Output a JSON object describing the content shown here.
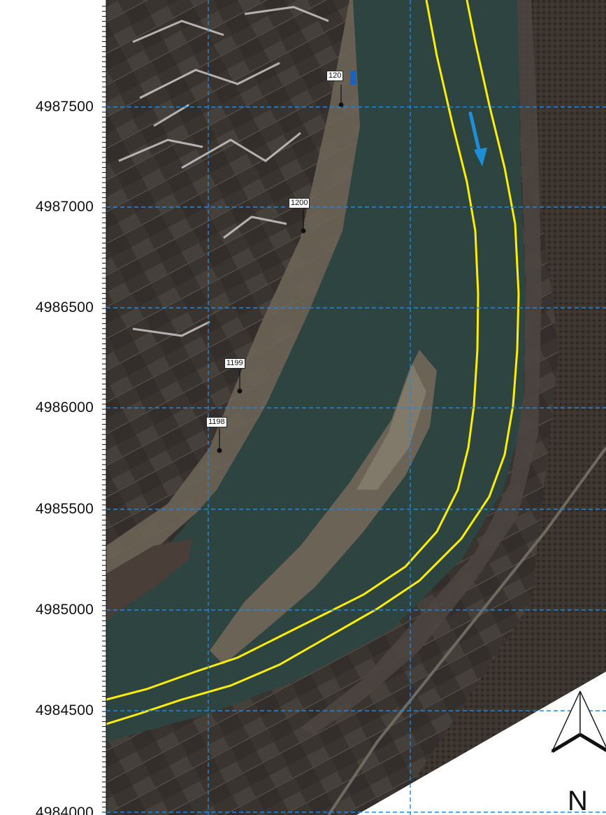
{
  "map": {
    "y_axis_labels": [
      "4987500",
      "4987000",
      "4986500",
      "4986000",
      "4985500",
      "4985000",
      "4984500",
      "4984000"
    ],
    "markers": [
      {
        "label": "120"
      },
      {
        "label": "1200"
      },
      {
        "label": "1199"
      },
      {
        "label": "1198"
      }
    ],
    "north_label": "N",
    "colors": {
      "grid": "#1e88e5",
      "channel_lines": "#ffee00",
      "flow_arrow": "#1e8fd6",
      "river": "#2e4440",
      "land": "#3d3530"
    },
    "flow_arrow_icon": "flow-direction-arrow-icon",
    "north_icon": "north-arrow-icon"
  }
}
